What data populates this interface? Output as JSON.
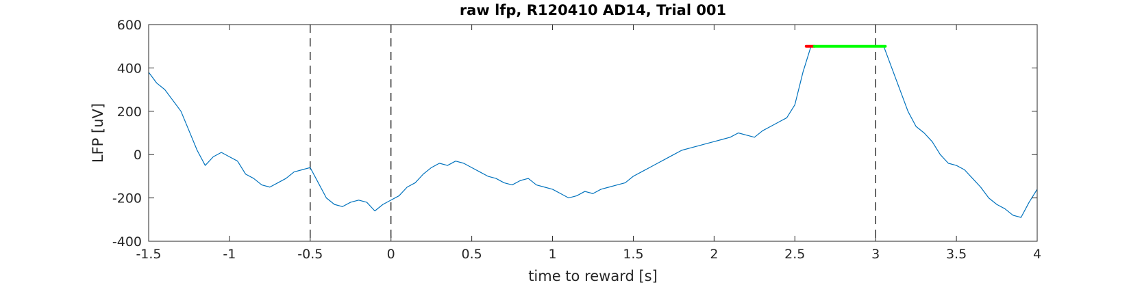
{
  "chart_data": {
    "type": "line",
    "title": "raw lfp, R120410 AD14, Trial 001",
    "xlabel": "time to reward [s]",
    "ylabel": "LFP [uV]",
    "xlim": [
      -1.5,
      4
    ],
    "ylim": [
      -400,
      600
    ],
    "xticks": [
      -1.5,
      -1,
      -0.5,
      0,
      0.5,
      1,
      1.5,
      2,
      2.5,
      3,
      3.5,
      4
    ],
    "xtick_labels": [
      "-1.5",
      "-1",
      "-0.5",
      "0",
      "0.5",
      "1",
      "1.5",
      "2",
      "2.5",
      "3",
      "3.5",
      "4"
    ],
    "yticks": [
      -400,
      -200,
      0,
      200,
      400,
      600
    ],
    "ytick_labels": [
      "-400",
      "-200",
      "0",
      "200",
      "400",
      "600"
    ],
    "grid": false,
    "colors": {
      "signal": "#0072BD",
      "clip_start": "#FF0000",
      "clip": "#00FF00",
      "event_lines": "#000000"
    },
    "event_lines_x": [
      -0.5,
      0,
      3
    ],
    "series": [
      {
        "x": [
          -1.5,
          -1.45,
          -1.4,
          -1.35,
          -1.3,
          -1.25,
          -1.2,
          -1.15,
          -1.1,
          -1.05,
          -1.0,
          -0.95,
          -0.9,
          -0.85,
          -0.8,
          -0.75,
          -0.7,
          -0.65,
          -0.6,
          -0.55,
          -0.5,
          -0.45,
          -0.4,
          -0.35,
          -0.3,
          -0.25,
          -0.2,
          -0.15,
          -0.1,
          -0.05,
          0.0,
          0.05,
          0.1,
          0.15,
          0.2,
          0.25,
          0.3,
          0.35,
          0.4,
          0.45,
          0.5,
          0.55,
          0.6,
          0.65,
          0.7,
          0.75,
          0.8,
          0.85,
          0.9,
          0.95,
          1.0,
          1.05,
          1.1,
          1.15,
          1.2,
          1.25,
          1.3,
          1.35,
          1.4,
          1.45,
          1.5,
          1.55,
          1.6,
          1.65,
          1.7,
          1.75,
          1.8,
          1.85,
          1.9,
          1.95,
          2.0,
          2.05,
          2.1,
          2.15,
          2.2,
          2.25,
          2.3,
          2.35,
          2.4,
          2.45,
          2.5,
          2.55,
          2.6,
          2.65,
          2.7,
          2.75,
          2.8,
          2.85,
          2.9,
          2.95,
          3.0,
          3.05,
          3.1,
          3.15,
          3.2,
          3.25,
          3.3,
          3.35,
          3.4,
          3.45,
          3.5,
          3.55,
          3.6,
          3.65,
          3.7,
          3.75,
          3.8,
          3.85,
          3.9,
          3.95,
          4.0
        ],
        "values": [
          380,
          330,
          300,
          250,
          200,
          110,
          20,
          -50,
          -10,
          10,
          -10,
          -30,
          -90,
          -110,
          -140,
          -150,
          -130,
          -110,
          -80,
          -70,
          -60,
          -130,
          -200,
          -230,
          -240,
          -220,
          -210,
          -220,
          -260,
          -230,
          -210,
          -190,
          -150,
          -130,
          -90,
          -60,
          -40,
          -50,
          -30,
          -40,
          -60,
          -80,
          -100,
          -110,
          -130,
          -140,
          -120,
          -110,
          -140,
          -150,
          -160,
          -180,
          -200,
          -190,
          -170,
          -180,
          -160,
          -150,
          -140,
          -130,
          -100,
          -80,
          -60,
          -40,
          -20,
          0,
          20,
          30,
          40,
          50,
          60,
          70,
          80,
          100,
          90,
          80,
          110,
          130,
          150,
          170,
          230,
          380,
          500,
          500,
          500,
          500,
          500,
          500,
          500,
          500,
          500,
          500,
          400,
          300,
          200,
          130,
          100,
          60,
          0,
          -40,
          -50,
          -70,
          -110,
          -150,
          -200,
          -230,
          -250,
          -280,
          -290,
          -220,
          -160
        ]
      }
    ],
    "clip_segments": [
      {
        "name": "clip_start",
        "x": [
          2.57,
          2.62
        ],
        "y": [
          500,
          500
        ]
      },
      {
        "name": "clip",
        "x": [
          2.62,
          3.06
        ],
        "y": [
          500,
          500
        ]
      }
    ]
  }
}
